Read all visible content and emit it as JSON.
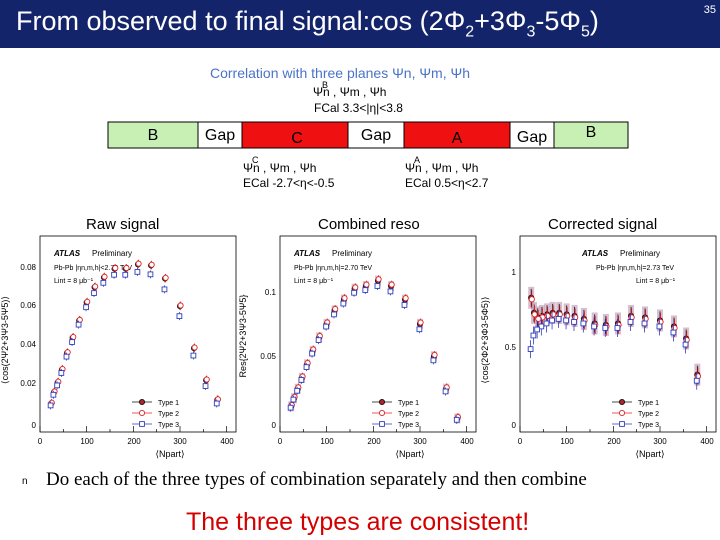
{
  "slide": {
    "title": "From observed to final signal:cos (2Φ",
    "title_sub1": "2",
    "title_mid1": "+3Φ",
    "title_sub2": "3",
    "title_mid2": "-5Φ",
    "title_sub3": "5",
    "title_end": ")",
    "page_number": "35"
  },
  "diagram": {
    "heading": "Correlation with three planes Ψn, Ψm, Ψh",
    "top_label_planes": "Ψn , Ψm , Ψh",
    "top_label_sup": "B",
    "top_label_range": "FCal 3.3<|η|<3.8",
    "segments": [
      "B",
      "Gap",
      "C",
      "Gap",
      "A",
      "Gap",
      "B"
    ],
    "left_label_planes": "Ψn , Ψm , Ψh",
    "left_label_sup": "C",
    "left_label_range": "ECal -2.7<η<-0.5",
    "right_label_planes": "Ψn , Ψm , Ψh",
    "right_label_sup": "A",
    "right_label_range": "ECal 0.5<η<2.7",
    "colors": {
      "green": "#c8f0b4",
      "red": "#ef1111"
    }
  },
  "panels": [
    {
      "caption": "Raw signal",
      "ylabel": "⟨cos(2Ψ2+3Ψ3-5Ψ5)⟩",
      "yticks": [
        "0",
        "0.02",
        "0.04",
        "0.06",
        "0.08"
      ],
      "xticks": [
        "0",
        "100",
        "200",
        "300",
        "400"
      ],
      "xlabel": "⟨Npart⟩",
      "atlas": "ATLAS",
      "prelim": "Preliminary",
      "collision": "Pb-Pb |ηn,m,h|<2.70 TeV",
      "lumi": "Lint = 8 μb⁻¹",
      "legend": [
        "Type 1",
        "Type 2",
        "Type 3"
      ]
    },
    {
      "caption": "Combined reso",
      "ylabel": "Res{2Ψ2+3Ψ3-5Ψ5}",
      "yticks": [
        "0",
        "0.05",
        "0.1"
      ],
      "xticks": [
        "0",
        "100",
        "200",
        "300",
        "400"
      ],
      "xlabel": "⟨Npart⟩",
      "atlas": "ATLAS",
      "prelim": "Preliminary",
      "collision": "Pb-Pb |ηn,m,h|=2.70 TeV",
      "lumi": "Lint = 8 μb⁻¹",
      "legend": [
        "Type 1",
        "Type 2",
        "Type 3"
      ]
    },
    {
      "caption": "Corrected signal",
      "ylabel": "⟨cos(2Φ2+3Φ3-5Φ5)⟩",
      "yticks": [
        "0",
        "0.5",
        "1"
      ],
      "xticks": [
        "0",
        "100",
        "200",
        "300",
        "400"
      ],
      "xlabel": "⟨Npart⟩",
      "atlas": "ATLAS",
      "prelim": "Preliminary",
      "collision": "Pb-Pb |ηn,m,h|=2.73 TeV",
      "lumi": "Lint = 8 μb⁻¹",
      "legend": [
        "Type 1",
        "Type 2",
        "Type 3"
      ]
    }
  ],
  "chart_data": [
    {
      "type": "scatter",
      "title": "Raw signal",
      "xlabel": "⟨Npart⟩",
      "ylabel": "⟨cos(2Ψ2+3Ψ3-5Ψ5)⟩",
      "xlim": [
        0,
        420
      ],
      "ylim": [
        0,
        0.09
      ],
      "series": [
        {
          "name": "Type 1",
          "points": [
            [
              380,
              0.0148
            ],
            [
              356,
              0.0238
            ],
            [
              330,
              0.0385
            ],
            [
              300,
              0.0578
            ],
            [
              268,
              0.0705
            ],
            [
              238,
              0.0765
            ],
            [
              210,
              0.077
            ],
            [
              184,
              0.075
            ],
            [
              160,
              0.075
            ],
            [
              137,
              0.071
            ],
            [
              117,
              0.0665
            ],
            [
              100,
              0.0595
            ],
            [
              84,
              0.0512
            ],
            [
              70,
              0.0433
            ],
            [
              58,
              0.0363
            ],
            [
              47,
              0.0286
            ],
            [
              38,
              0.0228
            ],
            [
              30,
              0.0183
            ],
            [
              24,
              0.0131
            ]
          ]
        },
        {
          "name": "Type 2",
          "points": [
            [
              380,
              0.015
            ],
            [
              356,
              0.0241
            ],
            [
              330,
              0.0388
            ],
            [
              300,
              0.0581
            ],
            [
              268,
              0.0708
            ],
            [
              238,
              0.0768
            ],
            [
              210,
              0.0773
            ],
            [
              184,
              0.0753
            ],
            [
              160,
              0.0753
            ],
            [
              137,
              0.0713
            ],
            [
              117,
              0.0668
            ],
            [
              100,
              0.0598
            ],
            [
              84,
              0.0515
            ],
            [
              70,
              0.0436
            ],
            [
              58,
              0.0366
            ],
            [
              47,
              0.0289
            ],
            [
              38,
              0.0231
            ],
            [
              30,
              0.0186
            ],
            [
              24,
              0.0134
            ]
          ]
        },
        {
          "name": "Type 3",
          "points": [
            [
              380,
              0.0131
            ],
            [
              356,
              0.0211
            ],
            [
              330,
              0.0351
            ],
            [
              300,
              0.0532
            ],
            [
              268,
              0.0655
            ],
            [
              238,
              0.0724
            ],
            [
              210,
              0.0735
            ],
            [
              184,
              0.0722
            ],
            [
              160,
              0.0722
            ],
            [
              137,
              0.0685
            ],
            [
              117,
              0.0638
            ],
            [
              100,
              0.0573
            ],
            [
              84,
              0.0493
            ],
            [
              70,
              0.0413
            ],
            [
              58,
              0.0346
            ],
            [
              47,
              0.0271
            ],
            [
              38,
              0.0214
            ],
            [
              30,
              0.0171
            ],
            [
              24,
              0.0122
            ]
          ]
        }
      ]
    },
    {
      "type": "scatter",
      "title": "Combined reso",
      "xlabel": "⟨Npart⟩",
      "ylabel": "Res{2Ψ2+3Ψ3-5Ψ5}",
      "xlim": [
        0,
        420
      ],
      "ylim": [
        0,
        0.145
      ],
      "series": [
        {
          "name": "Type 1",
          "points": [
            [
              380,
              0.01
            ],
            [
              356,
              0.032
            ],
            [
              330,
              0.056
            ],
            [
              300,
              0.08
            ],
            [
              268,
              0.098
            ],
            [
              238,
              0.108
            ],
            [
              210,
              0.112
            ],
            [
              184,
              0.108
            ],
            [
              160,
              0.106
            ],
            [
              137,
              0.098
            ],
            [
              117,
              0.09
            ],
            [
              100,
              0.08
            ],
            [
              84,
              0.07
            ],
            [
              70,
              0.06
            ],
            [
              58,
              0.05
            ],
            [
              47,
              0.04
            ],
            [
              38,
              0.032
            ],
            [
              30,
              0.025
            ],
            [
              24,
              0.019
            ]
          ]
        },
        {
          "name": "Type 2",
          "points": [
            [
              380,
              0.011
            ],
            [
              356,
              0.033
            ],
            [
              330,
              0.057
            ],
            [
              300,
              0.081
            ],
            [
              268,
              0.099
            ],
            [
              238,
              0.109
            ],
            [
              210,
              0.113
            ],
            [
              184,
              0.109
            ],
            [
              160,
              0.107
            ],
            [
              137,
              0.099
            ],
            [
              117,
              0.091
            ],
            [
              100,
              0.081
            ],
            [
              84,
              0.071
            ],
            [
              70,
              0.061
            ],
            [
              58,
              0.051
            ],
            [
              47,
              0.041
            ],
            [
              38,
              0.033
            ],
            [
              30,
              0.026
            ],
            [
              24,
              0.02
            ]
          ]
        },
        {
          "name": "Type 3",
          "points": [
            [
              380,
              0.009
            ],
            [
              356,
              0.03
            ],
            [
              330,
              0.053
            ],
            [
              300,
              0.076
            ],
            [
              268,
              0.094
            ],
            [
              238,
              0.104
            ],
            [
              210,
              0.108
            ],
            [
              184,
              0.105
            ],
            [
              160,
              0.103
            ],
            [
              137,
              0.095
            ],
            [
              117,
              0.087
            ],
            [
              100,
              0.078
            ],
            [
              84,
              0.068
            ],
            [
              70,
              0.058
            ],
            [
              58,
              0.048
            ],
            [
              47,
              0.0385
            ],
            [
              38,
              0.0305
            ],
            [
              30,
              0.024
            ],
            [
              24,
              0.018
            ]
          ]
        }
      ]
    },
    {
      "type": "scatter",
      "title": "Corrected signal",
      "xlabel": "⟨Npart⟩",
      "ylabel": "⟨cos(2Φ2+3Φ3-5Φ5)⟩",
      "xlim": [
        0,
        420
      ],
      "ylim": [
        0,
        1.3
      ],
      "series": [
        {
          "name": "Type 1",
          "points": [
            [
              380,
              0.38
            ],
            [
              356,
              0.62
            ],
            [
              330,
              0.7
            ],
            [
              300,
              0.74
            ],
            [
              268,
              0.76
            ],
            [
              238,
              0.77
            ],
            [
              210,
              0.72
            ],
            [
              184,
              0.71
            ],
            [
              160,
              0.72
            ],
            [
              137,
              0.75
            ],
            [
              117,
              0.77
            ],
            [
              100,
              0.78
            ],
            [
              84,
              0.79
            ],
            [
              70,
              0.79
            ],
            [
              58,
              0.78
            ],
            [
              47,
              0.77
            ],
            [
              38,
              0.76
            ],
            [
              30,
              0.79
            ],
            [
              24,
              0.89
            ]
          ]
        },
        {
          "name": "Type 2",
          "points": [
            [
              380,
              0.37
            ],
            [
              356,
              0.61
            ],
            [
              330,
              0.69
            ],
            [
              300,
              0.73
            ],
            [
              268,
              0.75
            ],
            [
              238,
              0.76
            ],
            [
              210,
              0.71
            ],
            [
              184,
              0.7
            ],
            [
              160,
              0.71
            ],
            [
              137,
              0.74
            ],
            [
              117,
              0.76
            ],
            [
              100,
              0.77
            ],
            [
              84,
              0.78
            ],
            [
              70,
              0.78
            ],
            [
              58,
              0.77
            ],
            [
              47,
              0.76
            ],
            [
              38,
              0.75
            ],
            [
              30,
              0.78
            ],
            [
              24,
              0.88
            ]
          ]
        },
        {
          "name": "Type 3",
          "points": [
            [
              380,
              0.34
            ],
            [
              356,
              0.58
            ],
            [
              330,
              0.66
            ],
            [
              300,
              0.7
            ],
            [
              268,
              0.72
            ],
            [
              238,
              0.73
            ],
            [
              210,
              0.69
            ],
            [
              184,
              0.69
            ],
            [
              160,
              0.7
            ],
            [
              137,
              0.72
            ],
            [
              117,
              0.73
            ],
            [
              100,
              0.74
            ],
            [
              84,
              0.75
            ],
            [
              70,
              0.74
            ],
            [
              58,
              0.72
            ],
            [
              47,
              0.7
            ],
            [
              38,
              0.68
            ],
            [
              30,
              0.64
            ],
            [
              24,
              0.55
            ]
          ]
        }
      ]
    }
  ],
  "text": {
    "bullet": "n",
    "body": "Do each of the three types of combination separately and then combine",
    "conclusion": "The three types are consistent!"
  }
}
